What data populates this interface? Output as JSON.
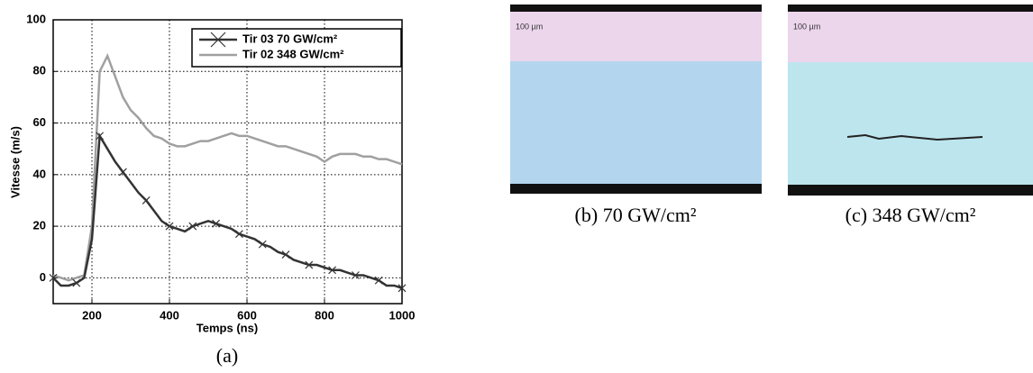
{
  "chart_data": {
    "type": "line",
    "xlabel": "Temps (ns)",
    "ylabel": "Vitesse (m/s)",
    "caption": "(a)",
    "x": [
      100,
      120,
      140,
      160,
      180,
      200,
      220,
      240,
      260,
      280,
      300,
      320,
      340,
      360,
      380,
      400,
      420,
      440,
      460,
      480,
      500,
      520,
      540,
      560,
      580,
      600,
      620,
      640,
      660,
      680,
      700,
      720,
      740,
      760,
      780,
      800,
      820,
      840,
      860,
      880,
      900,
      920,
      940,
      960,
      980,
      1000
    ],
    "series": [
      {
        "name": "Tir 03 70 GW/cm²",
        "color": "#333333",
        "marker": "x",
        "values": [
          0,
          -3,
          -3,
          -2,
          0,
          15,
          55,
          50,
          45,
          41,
          37,
          33,
          30,
          26,
          22,
          20,
          19,
          18,
          20,
          21,
          22,
          21,
          20,
          19,
          17,
          16,
          15,
          13,
          12,
          10,
          9,
          7,
          6,
          5,
          5,
          4,
          3,
          3,
          2,
          1,
          1,
          0,
          -1,
          -3,
          -3,
          -4
        ]
      },
      {
        "name": "Tir 02 348 GW/cm²",
        "color": "#a0a0a0",
        "values": [
          1,
          0,
          -1,
          0,
          1,
          20,
          80,
          86,
          78,
          70,
          65,
          62,
          58,
          55,
          54,
          52,
          51,
          51,
          52,
          53,
          53,
          54,
          55,
          56,
          55,
          55,
          54,
          53,
          52,
          51,
          51,
          50,
          49,
          48,
          47,
          45,
          47,
          48,
          48,
          48,
          47,
          47,
          46,
          46,
          45,
          44
        ]
      }
    ],
    "xlim": [
      100,
      1000
    ],
    "xticks": [
      200,
      400,
      600,
      800,
      1000
    ],
    "ylim": [
      -10,
      100
    ],
    "yticks": [
      0,
      20,
      40,
      60,
      80,
      100
    ],
    "grid": true,
    "legend": "top-right"
  },
  "images": [
    {
      "caption": "(b) 70 GW/cm²",
      "scale": "100 µm"
    },
    {
      "caption": "(c) 348 GW/cm²",
      "scale": "100 µm"
    }
  ]
}
